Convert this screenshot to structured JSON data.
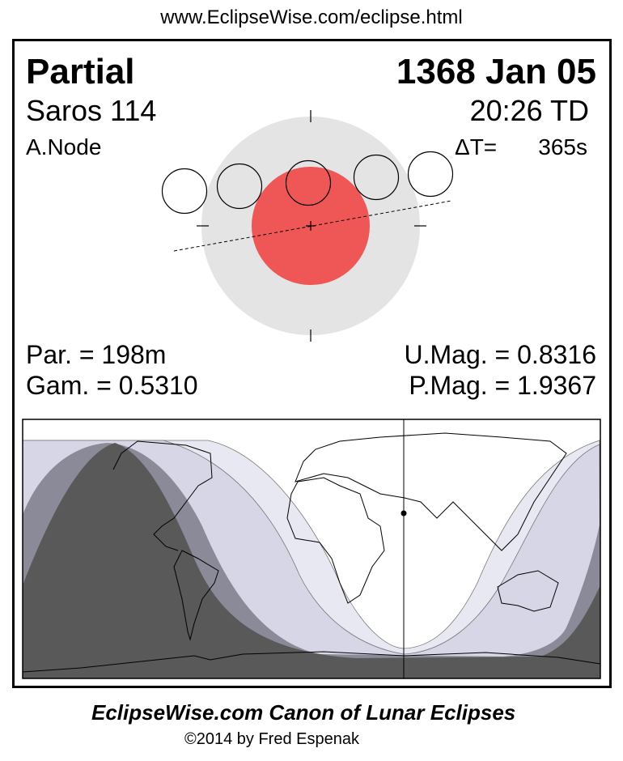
{
  "header_url": "www.EclipseWise.com/eclipse.html",
  "eclipse": {
    "type": "Partial",
    "date": "1368 Jan 05",
    "saros": "Saros 114",
    "time": "20:26 TD",
    "node": "A.Node",
    "delta_t_label": "ΔT=",
    "delta_t_value": "365s",
    "duration": "Par. = 198m",
    "gamma": "Gam. = 0.5310",
    "umag": "U.Mag. = 0.8316",
    "pmag": "P.Mag. = 1.9367"
  },
  "colors": {
    "penumbra": "#e4e4e4",
    "umbra": "#ef5656",
    "map_penumbral_light": "#e8e8f2",
    "map_penumbral": "#d6d6e6",
    "map_partial": "#8a8a98",
    "map_umbral": "#595959"
  },
  "footer": {
    "title": "EclipseWise.com Canon of Lunar Eclipses",
    "copyright": "©2014 by Fred Espenak"
  }
}
